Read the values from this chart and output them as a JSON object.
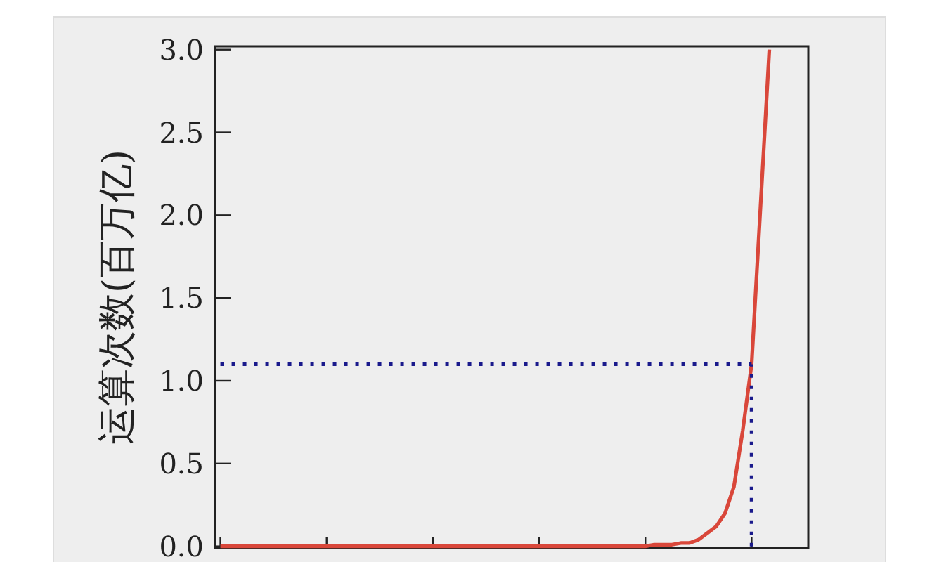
{
  "chart_data": {
    "type": "line",
    "ylabel": "运算次数(百万亿)",
    "categories": [
      null,
      null,
      null,
      null,
      null,
      null,
      null,
      null,
      null,
      null,
      null,
      null,
      null,
      null,
      null,
      null,
      null,
      null,
      null,
      null,
      null,
      null,
      null,
      null,
      null,
      null,
      null,
      null,
      null,
      null,
      null,
      null,
      null,
      null,
      null,
      null,
      null,
      null,
      null,
      null,
      null,
      null,
      null,
      null,
      null,
      null,
      null,
      null,
      null,
      null,
      null,
      null,
      null,
      null,
      null,
      null,
      null,
      null,
      null,
      null,
      null,
      null,
      null
    ],
    "ylim": [
      -0.01,
      3.02
    ],
    "yticks": [
      {
        "value": 0,
        "label": "0.0"
      },
      {
        "value": 0.5,
        "label": "0.5"
      },
      {
        "value": 1,
        "label": "1.0"
      },
      {
        "value": 1.5,
        "label": "1.5"
      },
      {
        "value": 2,
        "label": "2.0"
      },
      {
        "value": 2.5,
        "label": "2.5"
      },
      {
        "value": 3,
        "label": "3.0"
      }
    ],
    "tick_labels": "y",
    "series": [
      {
        "color": "#d9473a",
        "line_style": "solid",
        "values": [
          0,
          0,
          0,
          0,
          0,
          0,
          0,
          0,
          0,
          0,
          0,
          0,
          0,
          0,
          0,
          0,
          0,
          0,
          0,
          0,
          0,
          0,
          0,
          0,
          0,
          0,
          0,
          0,
          0,
          0,
          0,
          0,
          0,
          0,
          0,
          0,
          0,
          0,
          0,
          0,
          0,
          0,
          0,
          0,
          0,
          0,
          0,
          0,
          0,
          0.01,
          0.01,
          0.01,
          0.02,
          0.02,
          0.04,
          0.08,
          0.12,
          0.2,
          0.36,
          0.7,
          1.1,
          2.05,
          3.0
        ]
      },
      {
        "color": "#1a1a8c",
        "line_style": "dotted",
        "values": [
          1.1,
          1.1,
          1.1,
          1.1,
          1.1,
          1.1,
          1.1,
          1.1,
          1.1,
          1.1,
          1.1,
          1.1,
          1.1,
          1.1,
          1.1,
          1.1,
          1.1,
          1.1,
          1.1,
          1.1,
          1.1,
          1.1,
          1.1,
          1.1,
          1.1,
          1.1,
          1.1,
          1.1,
          1.1,
          1.1,
          1.1,
          1.1,
          1.1,
          1.1,
          1.1,
          1.1,
          1.1,
          1.1,
          1.1,
          1.1,
          1.1,
          1.1,
          1.1,
          1.1,
          1.1,
          1.1,
          1.1,
          1.1,
          1.1,
          1.1,
          1.1,
          1.1,
          1.1,
          1.1,
          1.1,
          1.1,
          1.1,
          1.1,
          1.1,
          1.1,
          1.1,
          null,
          null
        ],
        "errors": [
          null,
          null,
          null,
          null,
          null,
          null,
          null,
          null,
          null,
          null,
          null,
          null,
          null,
          null,
          null,
          null,
          null,
          null,
          null,
          null,
          null,
          null,
          null,
          null,
          null,
          null,
          null,
          null,
          null,
          null,
          null,
          null,
          null,
          null,
          null,
          null,
          null,
          null,
          null,
          null,
          null,
          null,
          null,
          null,
          null,
          null,
          null,
          null,
          null,
          null,
          null,
          null,
          null,
          null,
          null,
          null,
          null,
          null,
          null,
          null,
          [
            0,
            1.1
          ],
          null,
          null
        ]
      }
    ]
  }
}
